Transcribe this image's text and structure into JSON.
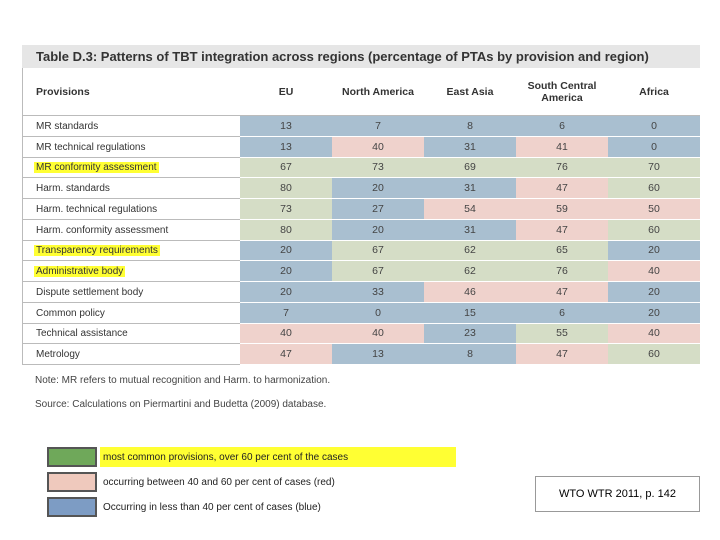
{
  "table": {
    "title": "Table D.3: Patterns of TBT integration across regions (percentage of PTAs by provision and region)",
    "header": [
      "Provisions",
      "EU",
      "North America",
      "East Asia",
      "South Central America",
      "Africa"
    ],
    "shading_colors": {
      "g": "#d5ddc6",
      "p": "#efd2cc",
      "b": "#a9bfd0"
    },
    "highlight_color": "#ffff33",
    "rows": [
      {
        "provision": "MR standards",
        "values": [
          13,
          7,
          8,
          6,
          0
        ],
        "shading": [
          "b",
          "b",
          "b",
          "b",
          "b"
        ],
        "highlight": false
      },
      {
        "provision": "MR technical regulations",
        "values": [
          13,
          40,
          31,
          41,
          0
        ],
        "shading": [
          "b",
          "p",
          "b",
          "p",
          "b"
        ],
        "highlight": false
      },
      {
        "provision": "MR conformity assessment",
        "values": [
          67,
          73,
          69,
          76,
          70
        ],
        "shading": [
          "g",
          "g",
          "g",
          "g",
          "g"
        ],
        "highlight": true
      },
      {
        "provision": "Harm. standards",
        "values": [
          80,
          20,
          31,
          47,
          60
        ],
        "shading": [
          "g",
          "b",
          "b",
          "p",
          "g"
        ],
        "highlight": false
      },
      {
        "provision": "Harm. technical regulations",
        "values": [
          73,
          27,
          54,
          59,
          50
        ],
        "shading": [
          "g",
          "b",
          "p",
          "p",
          "p"
        ],
        "highlight": false
      },
      {
        "provision": "Harm. conformity assessment",
        "values": [
          80,
          20,
          31,
          47,
          60
        ],
        "shading": [
          "g",
          "b",
          "b",
          "p",
          "g"
        ],
        "highlight": false
      },
      {
        "provision": "Transparency requirements",
        "values": [
          20,
          67,
          62,
          65,
          20
        ],
        "shading": [
          "b",
          "g",
          "g",
          "g",
          "b"
        ],
        "highlight": true
      },
      {
        "provision": "Administrative body",
        "values": [
          20,
          67,
          62,
          76,
          40
        ],
        "shading": [
          "b",
          "g",
          "g",
          "g",
          "p"
        ],
        "highlight": true
      },
      {
        "provision": "Dispute settlement body",
        "values": [
          20,
          33,
          46,
          47,
          20
        ],
        "shading": [
          "b",
          "b",
          "p",
          "p",
          "b"
        ],
        "highlight": false
      },
      {
        "provision": "Common policy",
        "values": [
          7,
          0,
          15,
          6,
          20
        ],
        "shading": [
          "b",
          "b",
          "b",
          "b",
          "b"
        ],
        "highlight": false
      },
      {
        "provision": "Technical assistance",
        "values": [
          40,
          40,
          23,
          55,
          40
        ],
        "shading": [
          "p",
          "p",
          "b",
          "g",
          "p"
        ],
        "highlight": false
      },
      {
        "provision": "Metrology",
        "values": [
          47,
          13,
          8,
          47,
          60
        ],
        "shading": [
          "p",
          "b",
          "b",
          "p",
          "g"
        ],
        "highlight": false
      }
    ],
    "note": "Note: MR refers to mutual recognition and Harm. to harmonization.",
    "source": "Source: Calculations on Piermartini and Budetta (2009) database."
  },
  "legend": [
    {
      "text": "most common provisions, over 60 per cent of the cases",
      "color": "#6fa85a",
      "highlight": true
    },
    {
      "text": "occurring between 40 and 60 per cent of cases (red)",
      "color": "#efc9bd",
      "highlight": false
    },
    {
      "text": "Occurring in less than 40 per cent of cases (blue)",
      "color": "#7d9cc4",
      "highlight": false
    }
  ],
  "citation": "WTO WTR 2011, p. 142"
}
